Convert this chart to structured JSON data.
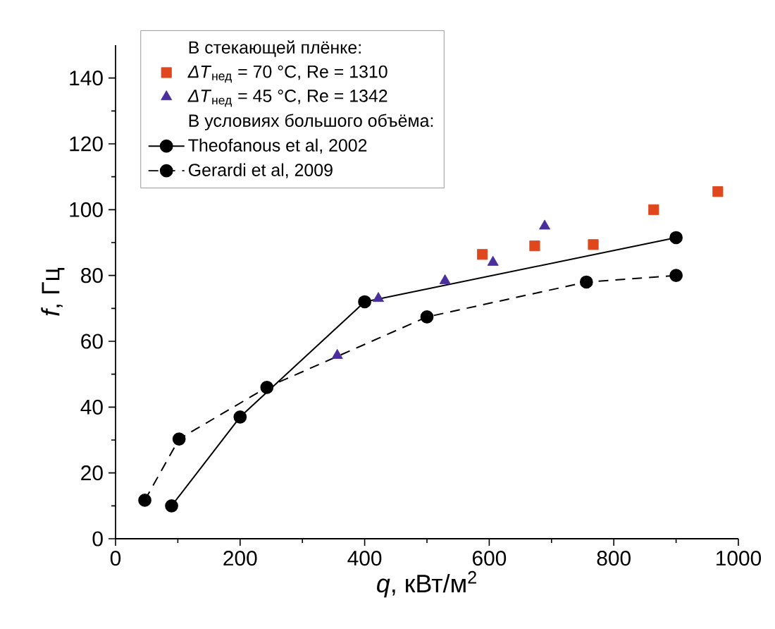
{
  "chart_data": {
    "type": "scatter",
    "xlabel": "*q*, кВт/м$^{2}$",
    "ylabel": "*f*, Гц",
    "annotations": [
      "В стекающей плёнке:",
      "В условиях большого объёма:"
    ],
    "xlim": [
      0,
      1000
    ],
    "xticks": [
      0,
      200,
      400,
      600,
      800,
      1000
    ],
    "ylim": [
      0,
      150
    ],
    "yticks": [
      0,
      20,
      40,
      60,
      80,
      100,
      120,
      140
    ],
    "grid": false,
    "legend": "top left",
    "series": [
      {
        "name": "*ΔT*$_{нед}$ = 70 °C, Re = 1310",
        "marker": "square",
        "color": "#e0471c",
        "x": [
          589,
          673,
          767,
          864,
          967
        ],
        "values": [
          86.4,
          89,
          89.4,
          100,
          105.5
        ]
      },
      {
        "name": "*ΔT*$_{нед}$ = 45 °C, Re = 1342",
        "marker": "triangle",
        "color": "#4a2e9c",
        "x": [
          356,
          422,
          529,
          606,
          689
        ],
        "values": [
          55.7,
          73,
          78.4,
          84,
          95
        ]
      },
      {
        "name": "Theofanous et al, 2002",
        "type": "line",
        "marker": "circle",
        "line_style": "solid",
        "color": "#000000",
        "x": [
          90,
          200,
          400,
          900
        ],
        "values": [
          10,
          37,
          72,
          91.5
        ]
      },
      {
        "name": "Gerardi et al, 2009",
        "type": "line",
        "marker": "circle",
        "line_style": "dashed",
        "color": "#000000",
        "x": [
          47,
          102,
          243,
          500,
          756,
          900
        ],
        "values": [
          11.7,
          30.3,
          46,
          67.4,
          78,
          80
        ]
      }
    ]
  }
}
